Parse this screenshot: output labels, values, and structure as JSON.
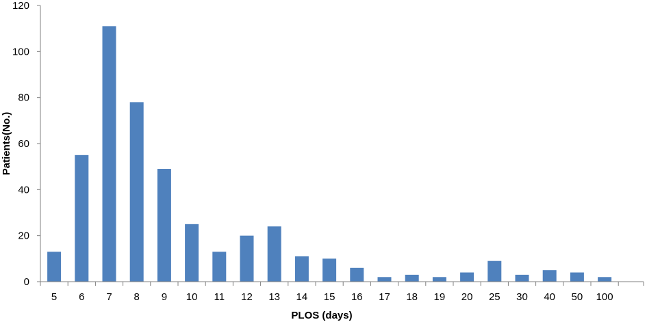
{
  "chart_data": {
    "type": "bar",
    "title": "",
    "xlabel": "PLOS (days)",
    "ylabel": "Patients(No.)",
    "categories": [
      "5",
      "6",
      "7",
      "8",
      "9",
      "10",
      "11",
      "12",
      "13",
      "14",
      "15",
      "16",
      "17",
      "18",
      "19",
      "20",
      "25",
      "30",
      "40",
      "50",
      "100"
    ],
    "values": [
      13,
      55,
      111,
      78,
      49,
      25,
      13,
      20,
      24,
      11,
      10,
      6,
      2,
      3,
      2,
      4,
      9,
      3,
      5,
      4,
      2
    ],
    "ylim": [
      0,
      120
    ],
    "yticks": [
      0,
      20,
      40,
      60,
      80,
      100,
      120
    ],
    "grid": false,
    "legend": "none",
    "colors": {
      "bar": "#4f81bd",
      "axis": "#808080"
    }
  }
}
